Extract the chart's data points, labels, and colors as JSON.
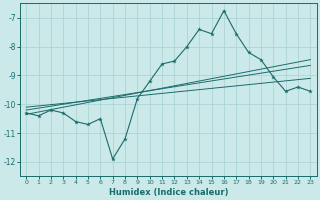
{
  "xlabel": "Humidex (Indice chaleur)",
  "ylabel": "",
  "background_color": "#cce9ea",
  "grid_color": "#aed4d5",
  "line_color": "#1a6b6b",
  "xlim": [
    -0.5,
    23.5
  ],
  "ylim": [
    -12.5,
    -6.5
  ],
  "yticks": [
    -12,
    -11,
    -10,
    -9,
    -8,
    -7
  ],
  "xticks": [
    0,
    1,
    2,
    3,
    4,
    5,
    6,
    7,
    8,
    9,
    10,
    11,
    12,
    13,
    14,
    15,
    16,
    17,
    18,
    19,
    20,
    21,
    22,
    23
  ],
  "main_series": [
    [
      0,
      -10.3
    ],
    [
      1,
      -10.4
    ],
    [
      2,
      -10.2
    ],
    [
      3,
      -10.3
    ],
    [
      4,
      -10.6
    ],
    [
      5,
      -10.7
    ],
    [
      6,
      -10.5
    ],
    [
      7,
      -11.9
    ],
    [
      8,
      -11.2
    ],
    [
      9,
      -9.8
    ],
    [
      10,
      -9.2
    ],
    [
      11,
      -8.6
    ],
    [
      12,
      -8.5
    ],
    [
      13,
      -8.0
    ],
    [
      14,
      -7.4
    ],
    [
      15,
      -7.55
    ],
    [
      16,
      -6.75
    ],
    [
      17,
      -7.55
    ],
    [
      18,
      -8.2
    ],
    [
      19,
      -8.45
    ],
    [
      20,
      -9.05
    ],
    [
      21,
      -9.55
    ],
    [
      22,
      -9.4
    ],
    [
      23,
      -9.55
    ]
  ],
  "trend_lines": [
    [
      [
        0,
        -10.35
      ],
      [
        23,
        -8.45
      ]
    ],
    [
      [
        0,
        -10.2
      ],
      [
        23,
        -8.65
      ]
    ],
    [
      [
        0,
        -10.1
      ],
      [
        23,
        -9.1
      ]
    ]
  ]
}
